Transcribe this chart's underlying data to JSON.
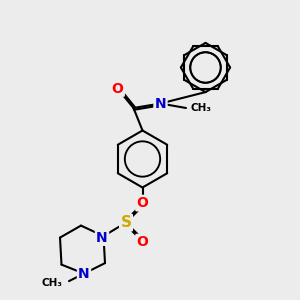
{
  "background_color": "#ececec",
  "atom_colors": {
    "C": "#000000",
    "N": "#0000cc",
    "O": "#ff0000",
    "S": "#ccaa00"
  },
  "bond_color": "#000000",
  "bond_width": 1.5,
  "dbo": 0.055,
  "figsize": [
    3.0,
    3.0
  ],
  "dpi": 100,
  "xlim": [
    0,
    10
  ],
  "ylim": [
    0,
    10
  ]
}
